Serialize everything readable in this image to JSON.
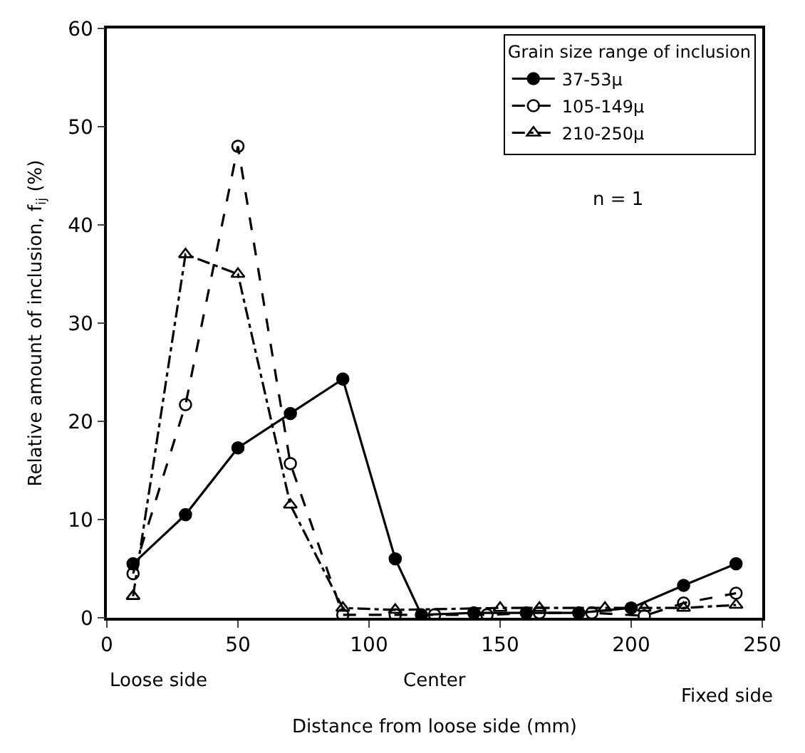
{
  "chart_data": {
    "type": "line",
    "xlabel": "Distance from loose side (mm)",
    "ylabel": "Relative amount of inclusion, f$_{ij}$ (%)",
    "legend_title": "Grain size range of inclusion",
    "legend": "top right",
    "xlim": [
      0,
      250
    ],
    "xticks": [
      0,
      50,
      100,
      150,
      200,
      250
    ],
    "ylim": [
      0,
      60
    ],
    "yticks": [
      0,
      10,
      20,
      30,
      40,
      50,
      60
    ],
    "annotations": [
      "n = 1",
      "Loose side",
      "Center",
      "Fixed side"
    ],
    "series": [
      {
        "name": "37-53μ",
        "color": "#000000",
        "marker": "circle",
        "line_style": "solid",
        "x": [
          10,
          30,
          50,
          70,
          90,
          110,
          120,
          140,
          160,
          180,
          200,
          220,
          240
        ],
        "values": [
          5.5,
          10.5,
          17.3,
          20.8,
          24.3,
          6,
          0.3,
          0.5,
          0.5,
          0.5,
          1,
          3.3,
          5.5
        ]
      },
      {
        "name": "105-149μ",
        "color": "#000000",
        "marker": "circle",
        "line_style": "dashed",
        "x": [
          10,
          30,
          50,
          70,
          90,
          110,
          125,
          145,
          165,
          185,
          205,
          220,
          240
        ],
        "values": [
          4.5,
          21.7,
          48,
          15.7,
          0.3,
          0.3,
          0.3,
          0.3,
          0.5,
          0.5,
          0.2,
          1.5,
          2.5
        ]
      },
      {
        "name": "210-250μ",
        "color": "#000000",
        "marker": "triangle",
        "line_style": "dashdot",
        "x": [
          10,
          30,
          50,
          70,
          90,
          110,
          150,
          165,
          190,
          205,
          220,
          240
        ],
        "values": [
          2.2,
          37,
          35,
          11.5,
          1,
          0.8,
          1,
          1,
          1,
          1,
          1,
          1.3
        ]
      }
    ]
  }
}
